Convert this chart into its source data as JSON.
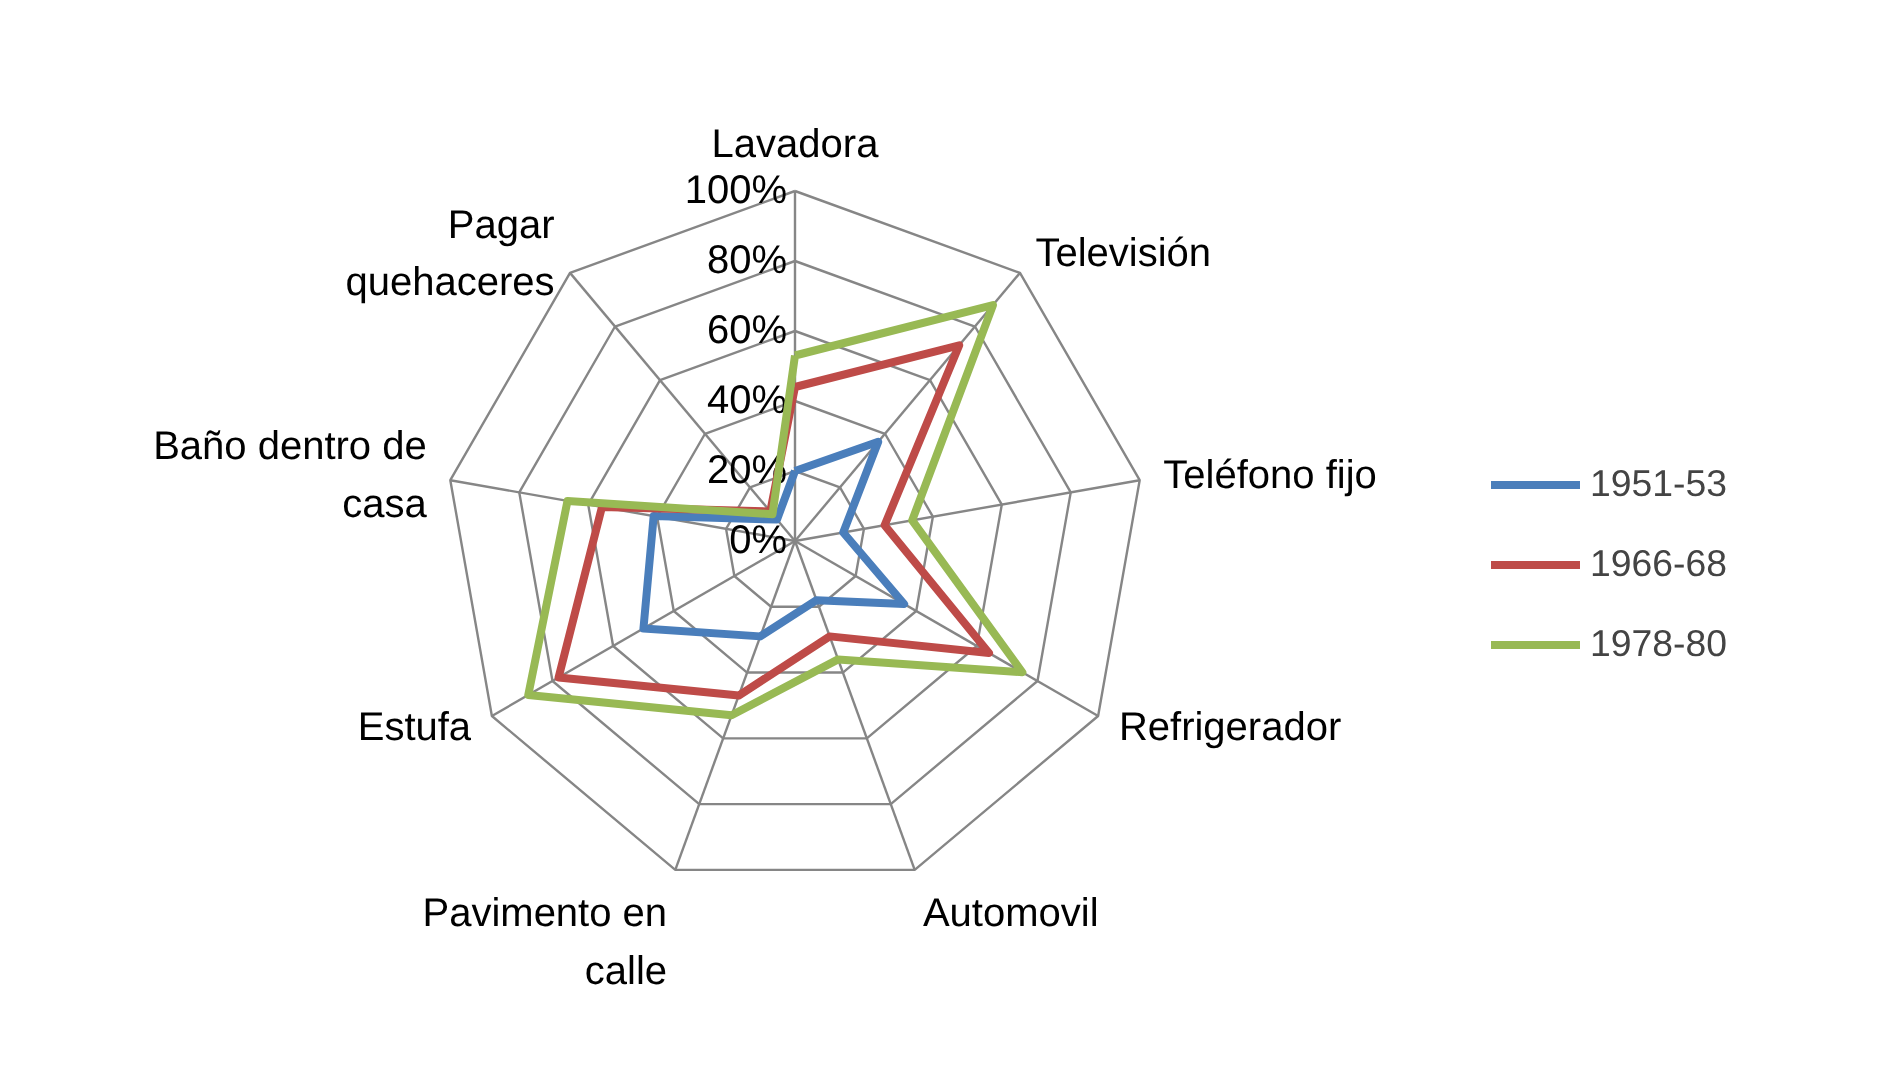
{
  "chart_data": {
    "type": "radar",
    "categories": [
      "Lavadora",
      "Televisión",
      "Teléfono fijo",
      "Refrigerador",
      "Automovil",
      "Pavimento en calle",
      "Estufa",
      "Baño dentro de casa",
      "Pagar quehaceres"
    ],
    "series": [
      {
        "name": "1951-53",
        "color": "#4a7ebb",
        "values": [
          20,
          37,
          14,
          36,
          18,
          29,
          50,
          41,
          8
        ]
      },
      {
        "name": "1966-68",
        "color": "#be4b48",
        "values": [
          44,
          73,
          26,
          64,
          29,
          47,
          78,
          56,
          11
        ]
      },
      {
        "name": "1978-80",
        "color": "#98b954",
        "values": [
          53,
          88,
          34,
          75,
          36,
          53,
          88,
          66,
          10
        ]
      }
    ],
    "ylim": [
      0,
      100
    ],
    "yticks": [
      {
        "value": 0,
        "label": "0%"
      },
      {
        "value": 20,
        "label": "20%"
      },
      {
        "value": 40,
        "label": "40%"
      },
      {
        "value": 60,
        "label": "60%"
      },
      {
        "value": 80,
        "label": "80%"
      },
      {
        "value": 100,
        "label": "100%"
      }
    ],
    "grid": true,
    "legend": "right",
    "line_style": "solid",
    "marker": "none"
  }
}
